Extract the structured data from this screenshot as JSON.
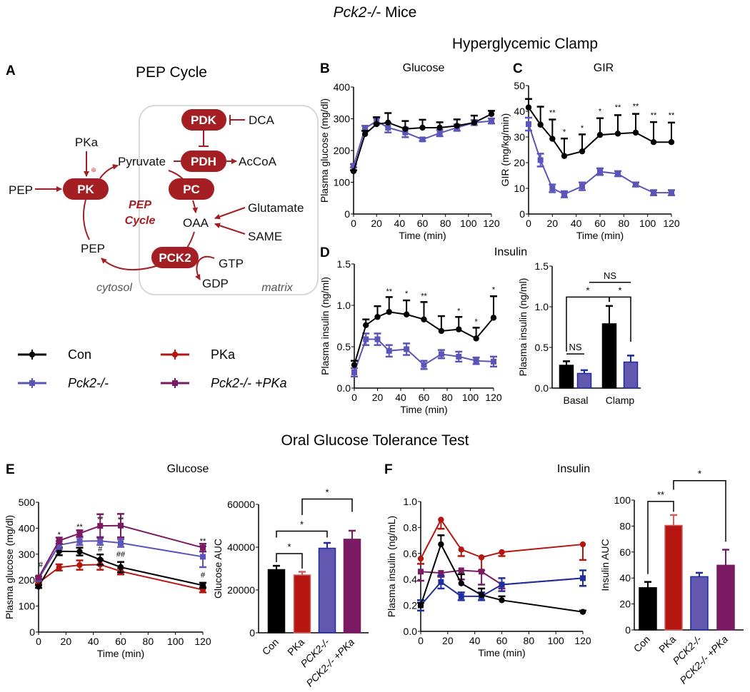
{
  "figure": {
    "title_italic": "Pck2-/-",
    "title_rest": " Mice",
    "section_clamp": "Hyperglycemic Clamp",
    "section_ogtt": "Oral Glucose Tolerance Test"
  },
  "panel_a": {
    "label": "A",
    "title": "PEP Cycle",
    "nodes": {
      "pdk": "PDK",
      "pdh": "PDH",
      "pk": "PK",
      "pc": "PC",
      "pck2": "PCK2"
    },
    "metabolites": {
      "dca": "DCA",
      "pka": "PKa",
      "pyruvate": "Pyruvate",
      "accoa": "AcCoA",
      "pep_in": "PEP",
      "oaa": "OAA",
      "glutamate": "Glutamate",
      "same": "SAME",
      "pep_out": "PEP",
      "gtp": "GTP",
      "gdp": "GDP"
    },
    "cycle_label_1": "PEP",
    "cycle_label_2": "Cycle",
    "activation_symbol": "⊕",
    "compartments": {
      "cytosol": "cytosol",
      "matrix": "matrix"
    }
  },
  "legend": [
    {
      "name": "Con",
      "color": "#000000",
      "marker": "circle"
    },
    {
      "name": "PKa",
      "color": "#b5160f",
      "marker": "circle"
    },
    {
      "name": "Pck2-/-",
      "color": "#5b55b8",
      "marker": "square"
    },
    {
      "name": "Pck2-/- +PKa",
      "color": "#7a1a62",
      "marker": "square"
    }
  ],
  "chart_data": [
    {
      "id": "B",
      "panel": "B",
      "type": "line",
      "title": "Glucose",
      "xlabel": "Time (min)",
      "ylabel": "Plasma glucose (mg/dl)",
      "xlim": [
        0,
        120
      ],
      "ylim": [
        0,
        400
      ],
      "xticks": [
        "0",
        "20",
        "40",
        "60",
        "80",
        "100",
        "120"
      ],
      "yticks": [
        "0",
        "100",
        "200",
        "300",
        "400"
      ],
      "series": [
        {
          "name": "Pck2-/-",
          "color": "#5b55b8",
          "marker": "square",
          "err_dir": "both",
          "x": [
            0,
            10,
            20,
            30,
            45,
            60,
            75,
            90,
            105,
            120
          ],
          "y": [
            152,
            270,
            293,
            272,
            257,
            235,
            255,
            272,
            288,
            293
          ],
          "err": [
            5,
            8,
            10,
            15,
            15,
            5,
            10,
            10,
            8,
            8
          ]
        },
        {
          "name": "Con",
          "color": "#000000",
          "marker": "circle",
          "err_dir": "up",
          "x": [
            0,
            10,
            20,
            30,
            45,
            60,
            75,
            90,
            105,
            120
          ],
          "y": [
            135,
            252,
            283,
            288,
            268,
            272,
            272,
            278,
            288,
            315
          ],
          "err": [
            3,
            10,
            22,
            30,
            25,
            25,
            17,
            20,
            22,
            10
          ]
        }
      ],
      "annotations": []
    },
    {
      "id": "C",
      "panel": "C",
      "type": "line",
      "title": "GIR",
      "xlabel": "Time (min)",
      "ylabel": "GIR (mg/kg/min)",
      "xlim": [
        0,
        120
      ],
      "ylim": [
        0,
        50
      ],
      "xticks": [
        "0",
        "20",
        "40",
        "60",
        "80",
        "100",
        "120"
      ],
      "yticks": [
        "0",
        "10",
        "20",
        "30",
        "40",
        "50"
      ],
      "series": [
        {
          "name": "Pck2-/-",
          "color": "#5b55b8",
          "marker": "square",
          "err_dir": "both",
          "x": [
            0,
            10,
            20,
            30,
            45,
            60,
            75,
            90,
            105,
            120
          ],
          "y": [
            35,
            21,
            10,
            7.7,
            10.8,
            16.5,
            15.7,
            11.5,
            8.3,
            8.3
          ],
          "err": [
            2.5,
            2.5,
            1.5,
            1.2,
            1.5,
            1.3,
            1,
            0.8,
            1,
            1
          ]
        },
        {
          "name": "Con",
          "color": "#000000",
          "marker": "circle",
          "err_dir": "up",
          "x": [
            0,
            10,
            20,
            30,
            45,
            60,
            75,
            90,
            105,
            120
          ],
          "y": [
            41.5,
            34.8,
            29.3,
            22.6,
            24.4,
            30.8,
            31.3,
            31.7,
            28,
            28
          ],
          "err": [
            3.3,
            7,
            7.5,
            6.8,
            6.6,
            6.5,
            7.2,
            7.3,
            7.8,
            7.6
          ]
        }
      ],
      "annotations": [
        {
          "x": 20,
          "y": 38.5,
          "text": "**"
        },
        {
          "x": 30,
          "y": 31,
          "text": "*"
        },
        {
          "x": 45,
          "y": 32.5,
          "text": "*"
        },
        {
          "x": 60,
          "y": 39,
          "text": "*"
        },
        {
          "x": 75,
          "y": 40.5,
          "text": "**"
        },
        {
          "x": 90,
          "y": 41,
          "text": "**"
        },
        {
          "x": 105,
          "y": 37.5,
          "text": "**"
        },
        {
          "x": 120,
          "y": 37.5,
          "text": "**"
        }
      ]
    },
    {
      "id": "D1",
      "panel": "D",
      "type": "line",
      "title": "Insulin",
      "xlabel": "Time (min)",
      "ylabel": "Plasma insulin (ng/ml)",
      "xlim": [
        0,
        120
      ],
      "ylim": [
        0,
        1.5
      ],
      "xticks": [
        "0",
        "20",
        "40",
        "60",
        "80",
        "100",
        "120"
      ],
      "yticks": [
        "0.0",
        "0.5",
        "1.0",
        "1.5"
      ],
      "series": [
        {
          "name": "Pck2-/-",
          "color": "#5b55b8",
          "marker": "square",
          "err_dir": "both",
          "x": [
            0,
            10,
            20,
            30,
            45,
            60,
            75,
            90,
            105,
            120
          ],
          "y": [
            0.19,
            0.59,
            0.59,
            0.45,
            0.47,
            0.28,
            0.41,
            0.38,
            0.33,
            0.32
          ],
          "err": [
            0.05,
            0.07,
            0.07,
            0.07,
            0.07,
            0.05,
            0.05,
            0.06,
            0.04,
            0.06
          ]
        },
        {
          "name": "Con",
          "color": "#000000",
          "marker": "circle",
          "err_dir": "up",
          "x": [
            0,
            10,
            20,
            30,
            45,
            60,
            75,
            90,
            105,
            120
          ],
          "y": [
            0.28,
            0.76,
            0.86,
            0.92,
            0.89,
            0.83,
            0.69,
            0.71,
            0.6,
            0.85
          ],
          "err": [
            0.05,
            0.07,
            0.13,
            0.18,
            0.17,
            0.21,
            0.18,
            0.15,
            0.13,
            0.26
          ]
        }
      ],
      "annotations": [
        {
          "x": 30,
          "y": 1.14,
          "text": "**"
        },
        {
          "x": 45,
          "y": 1.11,
          "text": "*"
        },
        {
          "x": 60,
          "y": 1.08,
          "text": "**"
        },
        {
          "x": 90,
          "y": 0.9,
          "text": "*"
        },
        {
          "x": 105,
          "y": 0.77,
          "text": "*"
        },
        {
          "x": 120,
          "y": 1.16,
          "text": "*"
        }
      ]
    },
    {
      "id": "D2",
      "panel": "",
      "type": "bar",
      "title": "",
      "xlabel": "",
      "ylabel": "Plasma insulin (ng/ml)",
      "ylim": [
        0,
        1.5
      ],
      "yticks": [
        "0.0",
        "0.5",
        "1.0",
        "1.5"
      ],
      "group_labels": [
        "Basal",
        "Clamp"
      ],
      "categories": [
        "Basal Con",
        "Basal Pck2-/-",
        "Clamp Con",
        "Clamp Pck2-/-"
      ],
      "show_category_labels": false,
      "values": [
        0.28,
        0.18,
        0.79,
        0.32
      ],
      "errors": [
        0.05,
        0.04,
        0.22,
        0.08
      ],
      "fills": [
        "#000000",
        "#6457b0",
        "#000000",
        "#6457b0"
      ],
      "borders": [
        "#000000",
        "#1a2a9a",
        "#000000",
        "#1a2a9a"
      ],
      "brackets": [
        {
          "a": 0,
          "b": 1,
          "y": 0.42,
          "ya": null,
          "yb": null,
          "label": "NS"
        },
        {
          "a": 0,
          "b": 2,
          "y": 1.12,
          "ya": 0.45,
          "yb": 1.06,
          "label": "*"
        },
        {
          "a": 2,
          "b": 3,
          "y": 1.12,
          "ya": 1.06,
          "yb": 0.57,
          "label": "*"
        },
        {
          "a": 1.2,
          "b": 3,
          "y": 1.3,
          "ya": null,
          "yb": null,
          "label": "NS"
        }
      ]
    },
    {
      "id": "E1",
      "panel": "E",
      "type": "line",
      "title": "Glucose",
      "xlabel": "Time (min)",
      "ylabel": "Plasma glucose (mg/dl)",
      "xlim": [
        0,
        120
      ],
      "ylim": [
        0,
        500
      ],
      "xticks": [
        "0",
        "20",
        "40",
        "60",
        "80",
        "100",
        "120"
      ],
      "yticks": [
        "0",
        "100",
        "200",
        "300",
        "400",
        "500"
      ],
      "series": [
        {
          "name": "PKa",
          "color": "#b5160f",
          "marker": "circle",
          "err_dir": "both",
          "x": [
            0,
            15,
            30,
            45,
            60,
            120
          ],
          "y": [
            190,
            249,
            258,
            260,
            234,
            163
          ],
          "err": [
            5,
            12,
            18,
            20,
            12,
            10
          ]
        },
        {
          "name": "Con",
          "color": "#000000",
          "marker": "circle",
          "err_dir": "both",
          "x": [
            0,
            15,
            30,
            45,
            60,
            120
          ],
          "y": [
            175,
            311,
            310,
            279,
            250,
            180
          ],
          "err": [
            5,
            15,
            15,
            20,
            20,
            10
          ]
        },
        {
          "name": "Pck2-/-",
          "color": "#5b55b8",
          "marker": "square",
          "err_dir": "both",
          "x": [
            0,
            15,
            30,
            45,
            60,
            120
          ],
          "y": [
            205,
            335,
            350,
            351,
            343,
            290
          ],
          "err": [
            8,
            15,
            15,
            15,
            15,
            40
          ]
        },
        {
          "name": "Pck2-/- +PKa",
          "color": "#7a1a62",
          "marker": "square",
          "err_dir": "both",
          "x": [
            0,
            15,
            30,
            45,
            60,
            120
          ],
          "y": [
            210,
            352,
            380,
            409,
            410,
            325
          ],
          "err": [
            5,
            12,
            12,
            45,
            45,
            15
          ]
        }
      ],
      "annotations": [
        {
          "x": 1.5,
          "y": 250,
          "text": "#"
        },
        {
          "x": 15,
          "y": 365,
          "text": "*"
        },
        {
          "x": 30,
          "y": 395,
          "text": "**"
        },
        {
          "x": 45,
          "y": 425,
          "text": "**"
        },
        {
          "x": 60,
          "y": 423,
          "text": "**"
        },
        {
          "x": 120,
          "y": 340,
          "text": "**"
        },
        {
          "x": 45,
          "y": 310,
          "text": "#"
        },
        {
          "x": 60,
          "y": 290,
          "text": "##"
        },
        {
          "x": 120,
          "y": 210,
          "text": "#"
        }
      ]
    },
    {
      "id": "E2",
      "panel": "",
      "type": "bar",
      "title": "",
      "xlabel": "",
      "ylabel": "Glucose AUC",
      "ylim": [
        0,
        60000
      ],
      "yticks": [
        "0",
        "20000",
        "40000",
        "60000"
      ],
      "group_labels": [],
      "categories": [
        "Con",
        "PKa",
        "PCK2-/-",
        "PCK2-/- +PKa"
      ],
      "show_category_labels": true,
      "values": [
        29500,
        27000,
        39500,
        43700
      ],
      "errors": [
        1800,
        1500,
        2500,
        4000
      ],
      "fills": [
        "#000000",
        "#b5160f",
        "#6457b0",
        "#7a1a62"
      ],
      "borders": [
        "#000000",
        "#d06060",
        "#1a2a9a",
        "#7a1a62"
      ],
      "brackets": [
        {
          "a": 0,
          "b": 1,
          "y": 37000,
          "ya": 33000,
          "yb": 30000,
          "label": "*"
        },
        {
          "a": 0,
          "b": 2,
          "y": 47500,
          "ya": 44500,
          "yb": 44500,
          "label": "*"
        },
        {
          "a": 1,
          "b": 3,
          "y": 62500,
          "ya": 55000,
          "yb": 56500,
          "label": "*"
        }
      ]
    },
    {
      "id": "F1",
      "panel": "F",
      "type": "line",
      "title": "Insulin",
      "xlabel": "Time (min)",
      "ylabel": "Plasma insulin (ng/mL)",
      "xlim": [
        0,
        120
      ],
      "ylim": [
        0,
        1.0
      ],
      "xticks": [
        "0",
        "20",
        "40",
        "60",
        "80",
        "100",
        "120"
      ],
      "yticks": [
        "0.0",
        "0.2",
        "0.4",
        "0.6",
        "0.8",
        "1.0"
      ],
      "series": [
        {
          "name": "PKa",
          "color": "#b5160f",
          "marker": "circle",
          "err_dir": "down",
          "x": [
            0,
            15,
            30,
            45,
            60,
            120
          ],
          "y": [
            0.56,
            0.86,
            0.63,
            0.57,
            0.61,
            0.67
          ],
          "err": [
            0.04,
            0.07,
            0.05,
            0.1,
            0.03,
            0.12
          ]
        },
        {
          "name": "Pck2-/- +PKa",
          "color": "#7a1a62",
          "marker": "square",
          "err_dir": "down",
          "x": [
            0,
            15,
            30,
            45,
            60,
            120
          ],
          "y": [
            0.46,
            0.45,
            0.47,
            0.46,
            0.36,
            0.41
          ],
          "err": [
            0.07,
            0.03,
            0.07,
            0.1,
            0.03,
            0.06
          ]
        },
        {
          "name": "Pck2-/-",
          "color": "#1f2e9c",
          "marker": "square",
          "err_dir": "both",
          "x": [
            0,
            15,
            30,
            45,
            60,
            120
          ],
          "y": [
            0.2,
            0.38,
            0.27,
            0.27,
            0.36,
            0.41
          ],
          "err": [
            0.04,
            0.05,
            0.03,
            0.03,
            0.05,
            0.06
          ]
        },
        {
          "name": "Con",
          "color": "#000000",
          "marker": "circle",
          "err_dir": "up",
          "x": [
            0,
            15,
            30,
            45,
            60,
            120
          ],
          "y": [
            0.2,
            0.67,
            0.37,
            0.28,
            0.24,
            0.15
          ],
          "err": [
            0.02,
            0.07,
            0.07,
            0.05,
            0.03,
            0.01
          ]
        }
      ],
      "annotations": []
    },
    {
      "id": "F2",
      "panel": "",
      "type": "bar",
      "title": "",
      "xlabel": "",
      "ylabel": "Insulin AUC",
      "ylim": [
        0,
        100
      ],
      "yticks": [
        "0",
        "20",
        "40",
        "60",
        "80",
        "100"
      ],
      "group_labels": [],
      "categories": [
        "Con",
        "PKa",
        "PCK2-/-",
        "PCK2-/- +PKa"
      ],
      "show_category_labels": true,
      "values": [
        32.5,
        80.5,
        41,
        49.8
      ],
      "errors": [
        4.5,
        8,
        3,
        12
      ],
      "fills": [
        "#000000",
        "#b5160f",
        "#6457b0",
        "#7a1a62"
      ],
      "borders": [
        "#000000",
        "#d06060",
        "#1a2a9a",
        "#7a1a62"
      ],
      "brackets": [
        {
          "a": 0,
          "b": 1,
          "y": 99,
          "ya": 43,
          "yb": 91,
          "label": "**"
        },
        {
          "a": 1,
          "b": 3,
          "y": 115,
          "ya": 108,
          "yb": 68,
          "label": "*"
        }
      ]
    }
  ]
}
